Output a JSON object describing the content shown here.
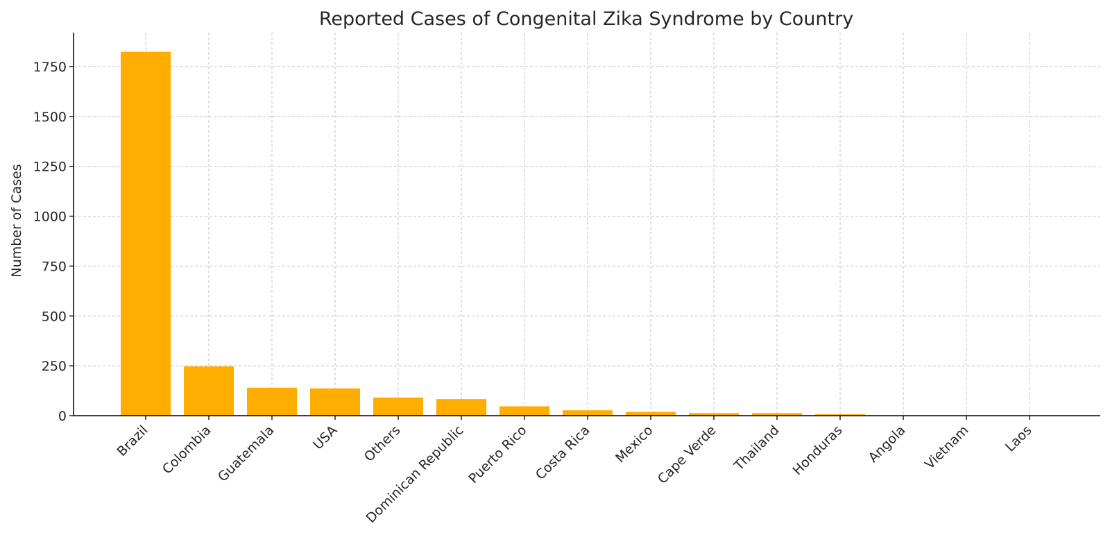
{
  "chart_data": {
    "type": "bar",
    "title": "Reported Cases of Congenital Zika Syndrome by Country",
    "xlabel": "",
    "ylabel": "Number of Cases",
    "categories": [
      "Brazil",
      "Colombia",
      "Guatemala",
      "USA",
      "Others",
      "Dominican Republic",
      "Puerto Rico",
      "Costa Rica",
      "Mexico",
      "Cape Verde",
      "Thailand",
      "Honduras",
      "Angola",
      "Vietnam",
      "Laos"
    ],
    "values": [
      1824,
      247,
      140,
      137,
      91,
      83,
      47,
      27,
      19,
      13,
      13,
      7,
      1,
      1,
      0
    ],
    "ylim": [
      0,
      1920
    ],
    "yticks": [
      0,
      250,
      500,
      750,
      1000,
      1250,
      1500,
      1750
    ],
    "grid": true,
    "bar_color": "#ffad00",
    "x_tick_rotation": -45
  }
}
